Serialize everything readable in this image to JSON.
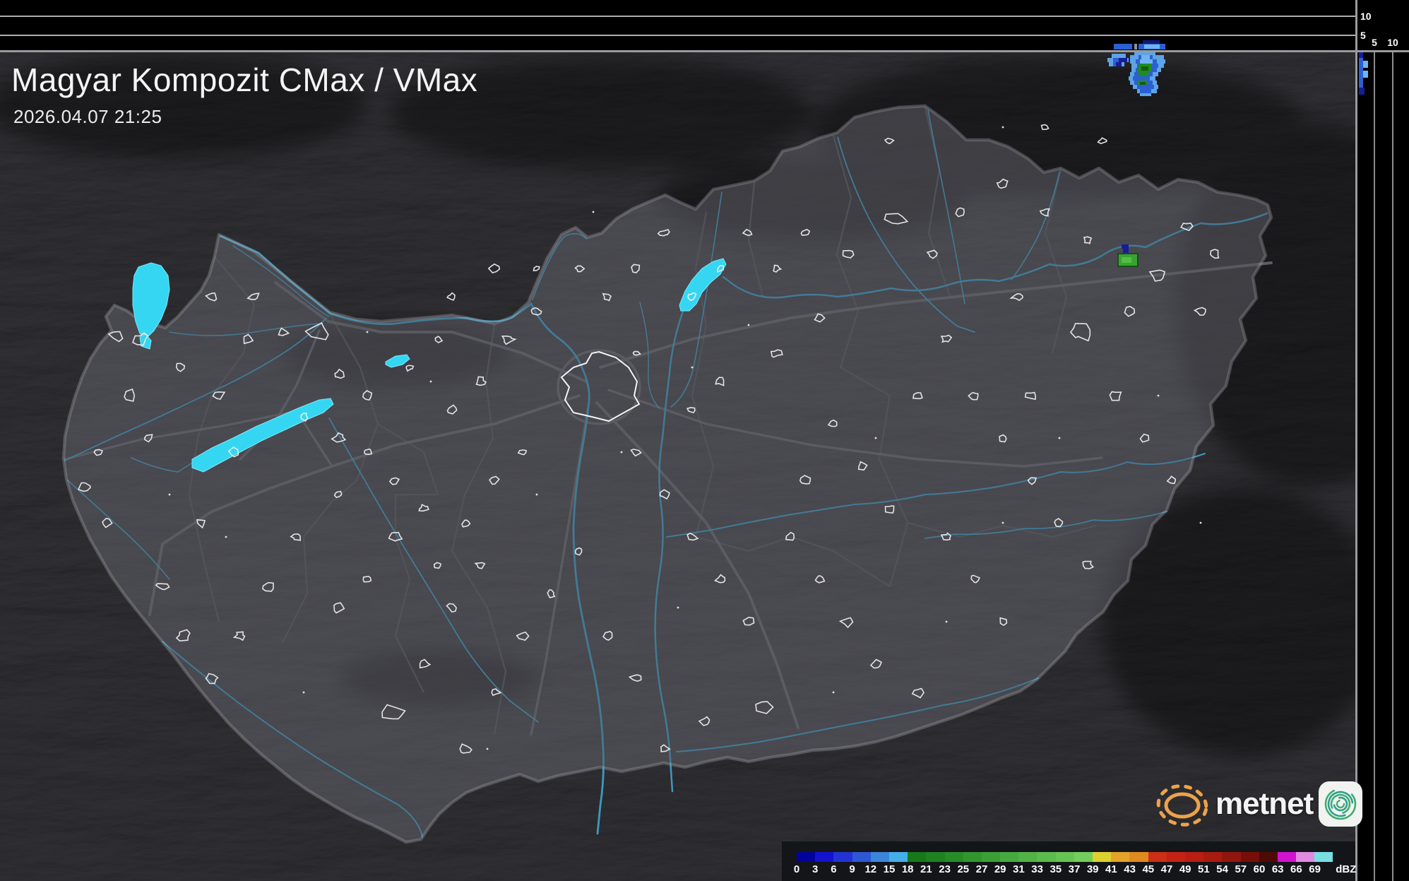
{
  "header": {
    "title": "Magyar Kompozit CMax / VMax",
    "timestamp": "2026.04.07 21:25"
  },
  "panels": {
    "top_height_axis": {
      "label_10": "10",
      "label_5": "5"
    },
    "right_height_axis": {
      "label_5": "5",
      "label_10": "10"
    }
  },
  "legend": {
    "unit": "dBZ",
    "ticks": [
      "0",
      "3",
      "6",
      "9",
      "12",
      "15",
      "18",
      "21",
      "23",
      "25",
      "27",
      "29",
      "31",
      "33",
      "35",
      "37",
      "39",
      "41",
      "43",
      "45",
      "47",
      "49",
      "51",
      "54",
      "57",
      "60",
      "63",
      "66",
      "69"
    ],
    "colors": [
      "#03039b",
      "#1313cf",
      "#2333d3",
      "#2e57d5",
      "#3c86da",
      "#45aee6",
      "#16791a",
      "#1e8220",
      "#278c27",
      "#32962e",
      "#3c9f36",
      "#46a93e",
      "#51b246",
      "#5bbb4d",
      "#65c454",
      "#73ce5b",
      "#dcd22f",
      "#e4a328",
      "#df8a1e",
      "#cc2e16",
      "#c52114",
      "#b81e12",
      "#a81b10",
      "#92160d",
      "#770f08",
      "#4f0a04",
      "#d013d0",
      "#e18ae0",
      "#79dde2"
    ]
  },
  "logo": {
    "text": "metnet"
  },
  "map_colors": {
    "lake": "#35d6f2",
    "river": "#3e9fc9",
    "country_border": "#97979d",
    "county_border": "#5a5a62",
    "road": "#6e6e76",
    "settlement": "#f2f2f2",
    "land": "#45454c",
    "outside_shade": "rgba(0,0,0,0.38)"
  },
  "radar_echoes": {
    "map": [
      {
        "color": "#5ea3e6",
        "rects": [
          [
            1606,
            72,
            30,
            6
          ],
          [
            1600,
            78,
            48,
            6
          ],
          [
            1600,
            84,
            50,
            6
          ],
          [
            1602,
            90,
            46,
            6
          ],
          [
            1602,
            96,
            42,
            6
          ],
          [
            1600,
            102,
            40,
            6
          ],
          [
            1598,
            108,
            38,
            6
          ],
          [
            1600,
            114,
            38,
            6
          ],
          [
            1604,
            120,
            36,
            6
          ],
          [
            1610,
            126,
            28,
            6
          ],
          [
            1614,
            132,
            16,
            4
          ],
          [
            1574,
            76,
            20,
            6
          ],
          [
            1568,
            82,
            30,
            6
          ],
          [
            1570,
            88,
            22,
            6
          ]
        ]
      },
      {
        "color": "#2c5fd2",
        "rects": [
          [
            1612,
            78,
            20,
            6
          ],
          [
            1608,
            84,
            30,
            6
          ],
          [
            1610,
            90,
            30,
            6
          ],
          [
            1608,
            96,
            30,
            6
          ],
          [
            1606,
            102,
            26,
            6
          ],
          [
            1604,
            108,
            24,
            6
          ],
          [
            1606,
            114,
            26,
            6
          ],
          [
            1610,
            120,
            24,
            6
          ],
          [
            1614,
            126,
            16,
            6
          ],
          [
            1576,
            82,
            8,
            6
          ],
          [
            1576,
            88,
            8,
            6
          ]
        ]
      },
      {
        "color": "#6fb4f0",
        "rects": [
          [
            1616,
            78,
            12,
            6
          ],
          [
            1614,
            84,
            18,
            6
          ]
        ]
      },
      {
        "color": "#161d99",
        "rects": [
          [
            1584,
            82,
            12,
            6
          ],
          [
            1580,
            88,
            8,
            6
          ],
          [
            1588,
            346,
            10,
            6
          ],
          [
            1590,
            352,
            8,
            6
          ]
        ]
      },
      {
        "color": "#1f8c1f",
        "rects": [
          [
            1612,
            90,
            18,
            6
          ],
          [
            1610,
            96,
            20,
            6
          ],
          [
            1612,
            102,
            14,
            6
          ],
          [
            1610,
            114,
            14,
            6
          ]
        ]
      },
      {
        "color": "#145c14",
        "rects": [
          [
            1616,
            94,
            10,
            6
          ],
          [
            1614,
            116,
            8,
            4
          ]
        ]
      },
      {
        "color": "#1a4d1a",
        "rects": [
          [
            1582,
            358,
            30,
            20
          ]
        ]
      },
      {
        "color": "#36a332",
        "rects": [
          [
            1584,
            360,
            26,
            16
          ]
        ]
      },
      {
        "color": "#52bf42",
        "rects": [
          [
            1588,
            364,
            14,
            8
          ]
        ]
      }
    ],
    "top_strip": [
      {
        "color": "#10167a",
        "rects": [
          [
            1618,
            57,
            24,
            5
          ]
        ]
      },
      {
        "color": "#2c5fd2",
        "rects": [
          [
            1577,
            62,
            26,
            8
          ],
          [
            1612,
            62,
            38,
            8
          ]
        ]
      },
      {
        "color": "#6fb4f0",
        "rects": [
          [
            1620,
            63,
            22,
            6
          ]
        ]
      },
      {
        "color": "#8f9398",
        "rects": [
          [
            1606,
            62,
            4,
            8
          ]
        ]
      }
    ],
    "right_strip": [
      {
        "color": "#161d99",
        "rects": [
          [
            1924,
            74,
            6,
            8
          ],
          [
            1924,
            124,
            8,
            10
          ]
        ]
      },
      {
        "color": "#2c5fd2",
        "rects": [
          [
            1924,
            82,
            6,
            42
          ]
        ]
      },
      {
        "color": "#6fb4f0",
        "rects": [
          [
            1930,
            86,
            7,
            10
          ],
          [
            1930,
            100,
            7,
            10
          ]
        ]
      }
    ]
  }
}
